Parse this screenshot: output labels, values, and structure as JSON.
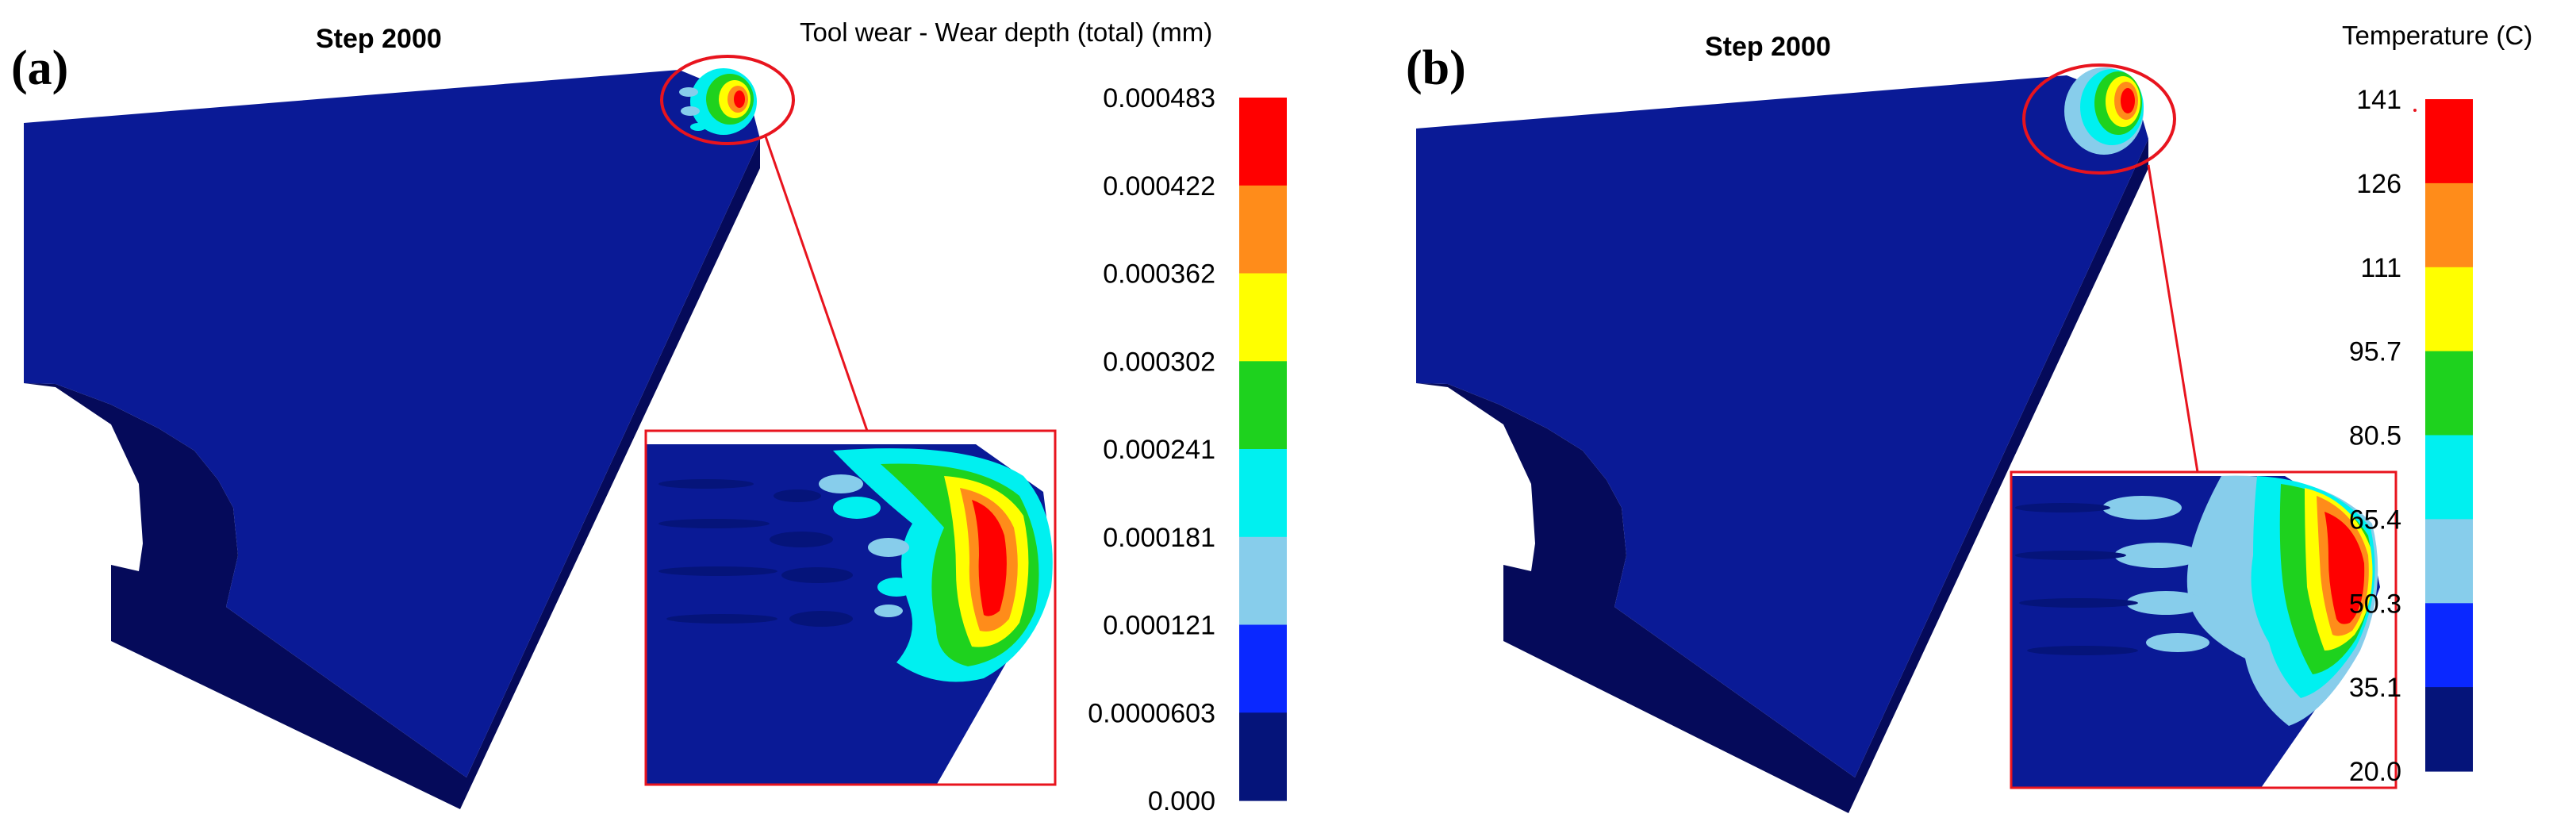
{
  "panel_a": {
    "label": "(a)",
    "step_label": "Step 2000",
    "legend_title": "Tool wear - Wear depth (total) (mm)",
    "ticks": [
      "0.000483",
      "0.000422",
      "0.000362",
      "0.000302",
      "0.000241",
      "0.000181",
      "0.000121",
      "0.0000603",
      "0.000"
    ]
  },
  "panel_b": {
    "label": "(b)",
    "step_label": "Step 2000",
    "legend_title": "Temperature (C)",
    "ticks": [
      "141",
      "126",
      "111",
      "95.7",
      "80.5",
      "65.4",
      "50.3",
      "35.1",
      "20.0"
    ]
  },
  "colors": {
    "band_top_to_bottom": [
      "#ff0000",
      "#ff8c1a",
      "#ffff00",
      "#1ed21e",
      "#00f0f0",
      "#87cdeb",
      "#0a28ff",
      "#05147a"
    ],
    "tool_face": "#0a1a96",
    "tool_side": "#050a5a",
    "highlight": "#e8141e"
  }
}
